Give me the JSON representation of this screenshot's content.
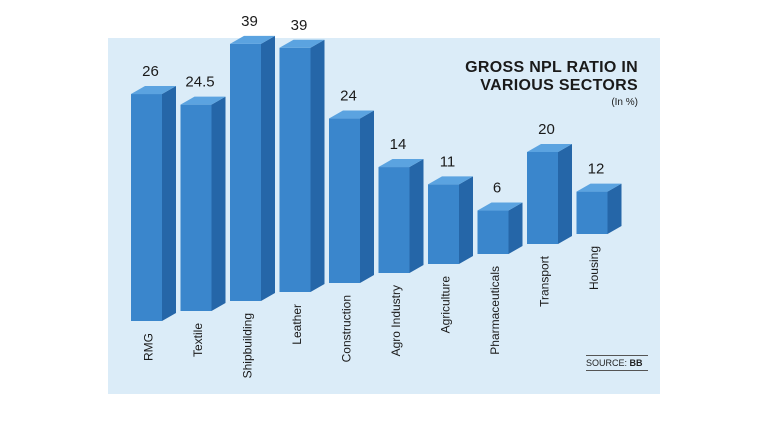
{
  "chart_data": {
    "type": "bar",
    "title": "GROSS NPL RATIO IN VARIOUS SECTORS",
    "title_lines": [
      "GROSS NPL RATIO IN",
      "VARIOUS SECTORS"
    ],
    "unit": "(In %)",
    "source_label": "SOURCE:",
    "source_value": "BB",
    "categories": [
      "RMG",
      "Textile",
      "Shipbuilding",
      "Leather",
      "Construction",
      "Agro Industry",
      "Agriculture",
      "Pharmaceuticals",
      "Transport",
      "Housing"
    ],
    "values": [
      26,
      24.5,
      39,
      39,
      24,
      14,
      11,
      6,
      20,
      12
    ],
    "value_labels": [
      "26",
      "24.5",
      "39",
      "39",
      "24",
      "14",
      "11",
      "6",
      "20",
      "12"
    ],
    "xlabel": "",
    "ylabel": "",
    "grid": false,
    "legend": "none",
    "colors": {
      "front": "#3a86cc",
      "side": "#2566a8",
      "top": "#5ba3e0",
      "background": "#dbecf8"
    }
  }
}
